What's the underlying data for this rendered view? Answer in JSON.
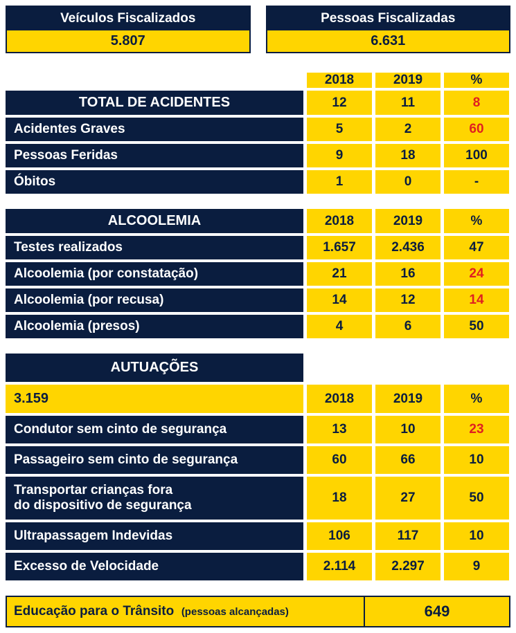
{
  "colors": {
    "dark": "#0a1d3f",
    "yellow": "#ffd500",
    "red": "#e02020",
    "blue": "#0a1d3f",
    "bg": "#ffffff"
  },
  "top": {
    "veiculos": {
      "label": "Veículos Fiscalizados",
      "value": "5.807"
    },
    "pessoas": {
      "label": "Pessoas Fiscalizadas",
      "value": "6.631"
    }
  },
  "headers": {
    "y2018": "2018",
    "y2019": "2019",
    "pct": "%"
  },
  "acidentes": {
    "title": "TOTAL DE ACIDENTES",
    "total": {
      "y2018": "12",
      "y2019": "11",
      "pct": "8",
      "pct_color": "red"
    },
    "graves": {
      "label": "Acidentes Graves",
      "y2018": "5",
      "y2019": "2",
      "pct": "60",
      "pct_color": "red"
    },
    "feridas": {
      "label": "Pessoas Feridas",
      "y2018": "9",
      "y2019": "18",
      "pct": "100",
      "pct_color": "blue"
    },
    "obitos": {
      "label": "Óbitos",
      "y2018": "1",
      "y2019": "0",
      "pct": "-",
      "pct_color": "blue"
    }
  },
  "alcoolemia": {
    "title": "ALCOOLEMIA",
    "testes": {
      "label": "Testes realizados",
      "y2018": "1.657",
      "y2019": "2.436",
      "pct": "47",
      "pct_color": "blue"
    },
    "constat": {
      "label": "Alcoolemia (por constatação)",
      "y2018": "21",
      "y2019": "16",
      "pct": "24",
      "pct_color": "red"
    },
    "recusa": {
      "label": "Alcoolemia (por recusa)",
      "y2018": "14",
      "y2019": "12",
      "pct": "14",
      "pct_color": "red"
    },
    "presos": {
      "label": "Alcoolemia (presos)",
      "y2018": "4",
      "y2019": "6",
      "pct": "50",
      "pct_color": "blue"
    }
  },
  "autuacoes": {
    "title": "AUTUAÇÕES",
    "total": "3.159",
    "rows": {
      "condutor": {
        "label": "Condutor sem cinto de segurança",
        "y2018": "13",
        "y2019": "10",
        "pct": "23",
        "pct_color": "red"
      },
      "passageiro": {
        "label": "Passageiro sem cinto de segurança",
        "y2018": "60",
        "y2019": "66",
        "pct": "10",
        "pct_color": "blue"
      },
      "criancas": {
        "label": "Transportar crianças fora\ndo dispositivo de segurança",
        "y2018": "18",
        "y2019": "27",
        "pct": "50",
        "pct_color": "blue"
      },
      "ultrapass": {
        "label": "Ultrapassagem Indevidas",
        "y2018": "106",
        "y2019": "117",
        "pct": "10",
        "pct_color": "blue"
      },
      "excesso": {
        "label": "Excesso de Velocidade",
        "y2018": "2.114",
        "y2019": "2.297",
        "pct": "9",
        "pct_color": "blue"
      }
    }
  },
  "footer": {
    "text": "Educação para o Trânsito",
    "sub": "(pessoas alcançadas)",
    "value": "649"
  }
}
